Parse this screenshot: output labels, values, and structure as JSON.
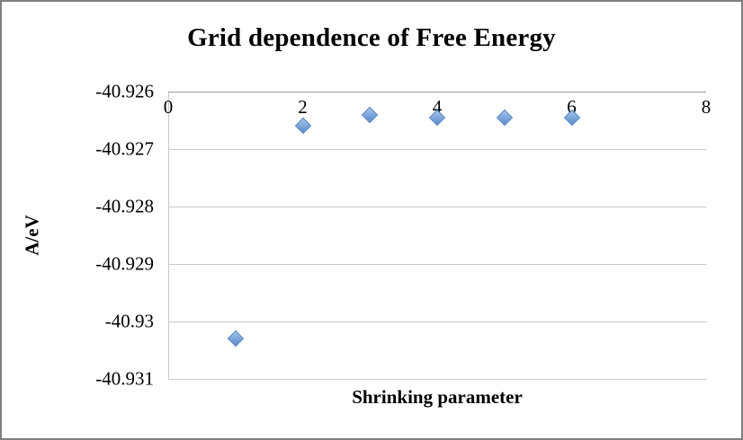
{
  "figure": {
    "title": "Grid dependence of Free Energy",
    "xlabel": "Shrinking parameter",
    "ylabel": "A/eV"
  },
  "chart_data": {
    "type": "scatter",
    "title": "Grid dependence of Free Energy",
    "xlabel": "Shrinking parameter",
    "ylabel": "A/eV",
    "x": [
      1,
      2,
      3,
      4,
      5,
      6
    ],
    "y": [
      -40.9303,
      -40.9266,
      -40.9264,
      -40.92645,
      -40.92645,
      -40.92645
    ],
    "xlim": [
      0,
      8
    ],
    "ylim": [
      -40.931,
      -40.926
    ],
    "x_ticks": [
      {
        "value": 0,
        "label": "0"
      },
      {
        "value": 2,
        "label": "2"
      },
      {
        "value": 4,
        "label": "4"
      },
      {
        "value": 6,
        "label": "6"
      },
      {
        "value": 8,
        "label": "8"
      }
    ],
    "y_ticks": [
      {
        "value": -40.926,
        "label": "-40.926"
      },
      {
        "value": -40.927,
        "label": "-40.927"
      },
      {
        "value": -40.928,
        "label": "-40.928"
      },
      {
        "value": -40.929,
        "label": "-40.929"
      },
      {
        "value": -40.93,
        "label": "-40.93"
      },
      {
        "value": -40.931,
        "label": "-40.931"
      }
    ],
    "grid": "horizontal",
    "legend": "none",
    "marker": {
      "shape": "diamond",
      "fill": "#6f9bd4",
      "stroke": "#4f81bd"
    },
    "colors": {
      "gridline": "#c9c9c9",
      "axis": "#9a9a9a",
      "text": "#000000",
      "border": "#7f7f7f"
    }
  }
}
